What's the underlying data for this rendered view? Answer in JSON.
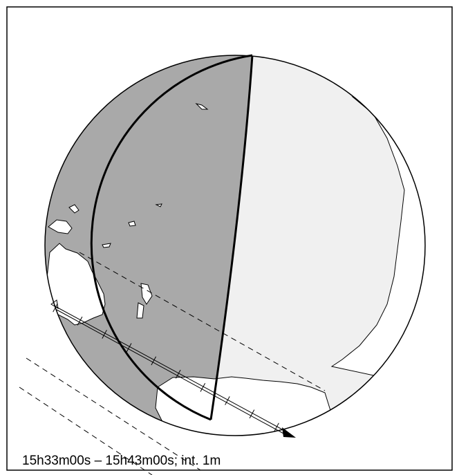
{
  "caption": "15h33m00s – 15h43m00s; int.  1m",
  "colors": {
    "night_side": "#a9a9a9",
    "day_side": "#f0f0f0",
    "land": "#ffffff",
    "outline": "#000000",
    "background": "#ffffff"
  },
  "globe": {
    "type": "orthographic-projection",
    "features": [
      "terminator",
      "coastlines",
      "eclipse-shadow-track",
      "limit-lines"
    ]
  },
  "track": {
    "tick_count_shown": 10,
    "direction": "southeast"
  }
}
